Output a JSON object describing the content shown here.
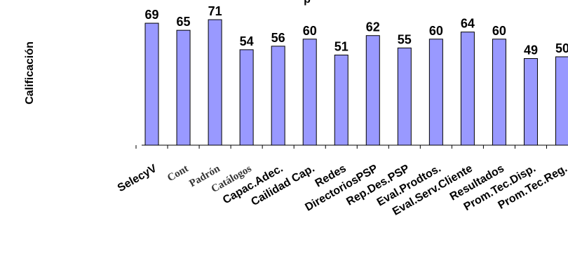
{
  "chart_data": {
    "type": "bar",
    "title": "",
    "title_visible_fragment": "p",
    "xlabel": "",
    "ylabel": "Calificación",
    "ylim": [
      0,
      73
    ],
    "grid": false,
    "categories": [
      "SelecyV",
      "Cont",
      "Padrón",
      "Catálogos",
      "Capac.Adec.",
      "Cailidad Cap.",
      "Redes",
      "DirectoriosPSP",
      "Rep.Des.PSP",
      "Eval.Prodtos.",
      "Eval.Serv.Cliente",
      "Resultados",
      "Prom.Tec.Disp.",
      "Prom.Tec.Reg."
    ],
    "values": [
      69,
      65,
      71,
      54,
      56,
      60,
      51,
      62,
      55,
      60,
      64,
      60,
      49,
      50
    ],
    "bar_color": "#9999ff",
    "bar_edge_color": "#000000"
  }
}
